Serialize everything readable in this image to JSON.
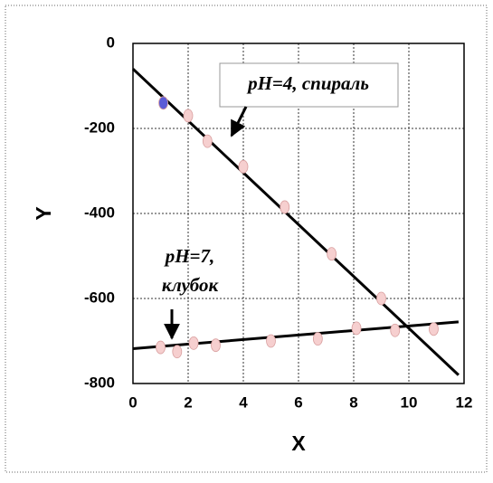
{
  "chart_data": {
    "type": "scatter",
    "xlabel": "X",
    "ylabel": "Y",
    "xlim": [
      0,
      12
    ],
    "ylim": [
      -800,
      0
    ],
    "xticks": [
      0,
      2,
      4,
      6,
      8,
      10,
      12
    ],
    "yticks": [
      -800,
      -600,
      -400,
      -200,
      0
    ],
    "grid": true,
    "series": [
      {
        "color": "#5b5bd6",
        "x": [
          1.1
        ],
        "values": [
          -140
        ]
      },
      {
        "color": "#f6cfcf",
        "x": [
          2,
          2.7,
          4,
          5.5,
          7.2,
          9
        ],
        "values": [
          -170,
          -230,
          -290,
          -385,
          -495,
          -600
        ]
      },
      {
        "color": "#f6cfcf",
        "x": [
          1,
          1.6,
          2.2,
          3,
          5,
          6.7,
          8.1,
          9.5,
          10.9
        ],
        "values": [
          -715,
          -725,
          -705,
          -710,
          -700,
          -695,
          -670,
          -675,
          -672
        ]
      }
    ],
    "lines": [
      {
        "color": "#000000",
        "x": [
          0,
          11.8
        ],
        "values": [
          -60,
          -780
        ]
      },
      {
        "color": "#000000",
        "x": [
          0,
          11.8
        ],
        "values": [
          -718,
          -655
        ]
      }
    ],
    "annotations": [
      {
        "lines": [
          "pH=4, спираль"
        ]
      },
      {
        "lines": [
          "pH=7,",
          "клубок"
        ]
      }
    ]
  }
}
